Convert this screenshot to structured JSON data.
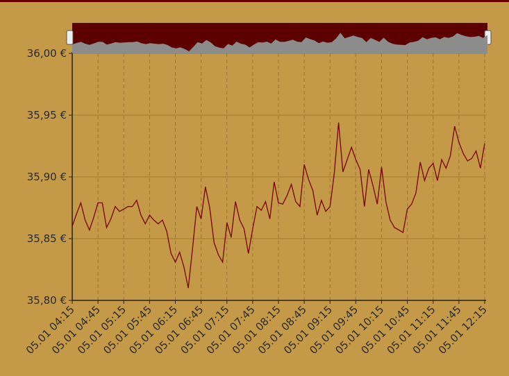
{
  "chart_data": {
    "type": "line",
    "categories": [
      "05.01 04:15",
      null,
      null,
      null,
      null,
      null,
      "05.01 04:45",
      null,
      null,
      null,
      null,
      null,
      "05.01 05:15",
      null,
      null,
      null,
      null,
      null,
      "05.01 05:45",
      null,
      null,
      null,
      null,
      null,
      "05.01 06:15",
      null,
      null,
      null,
      null,
      null,
      "05.01 06:45",
      null,
      null,
      null,
      null,
      null,
      "05.01 07:15",
      null,
      null,
      null,
      null,
      null,
      "05.01 07:45",
      null,
      null,
      null,
      null,
      null,
      "05.01 08:15",
      null,
      null,
      null,
      null,
      null,
      "05.01 08:45",
      null,
      null,
      null,
      null,
      null,
      "05.01 09:15",
      null,
      null,
      null,
      null,
      null,
      "05.01 09:45",
      null,
      null,
      null,
      null,
      null,
      "05.01 10:15",
      null,
      null,
      null,
      null,
      null,
      "05.01 10:45",
      null,
      null,
      null,
      null,
      null,
      "05.01 11:15",
      null,
      null,
      null,
      null,
      null,
      "05.01 11:45",
      null,
      null,
      null,
      null,
      null,
      "05.01 12:15"
    ],
    "values": [
      35.86,
      35.87,
      35.879,
      35.865,
      35.857,
      35.867,
      35.879,
      35.879,
      35.859,
      35.866,
      35.876,
      35.872,
      35.874,
      35.876,
      35.876,
      35.881,
      35.869,
      35.862,
      35.869,
      35.865,
      35.862,
      35.865,
      35.856,
      35.838,
      35.831,
      35.839,
      35.827,
      35.81,
      35.842,
      35.876,
      35.866,
      35.892,
      35.875,
      35.847,
      35.837,
      35.831,
      35.863,
      35.851,
      35.88,
      35.865,
      35.858,
      35.838,
      35.858,
      35.876,
      35.873,
      35.88,
      35.866,
      35.896,
      35.879,
      35.878,
      35.885,
      35.894,
      35.88,
      35.876,
      35.91,
      35.898,
      35.889,
      35.869,
      35.881,
      35.872,
      35.876,
      35.903,
      35.944,
      35.904,
      35.914,
      35.924,
      35.914,
      35.906,
      35.876,
      35.906,
      35.893,
      35.878,
      35.908,
      35.88,
      35.865,
      35.859,
      35.857,
      35.855,
      35.874,
      35.878,
      35.887,
      35.912,
      35.897,
      35.907,
      35.911,
      35.897,
      35.914,
      35.907,
      35.917,
      35.941,
      35.928,
      35.919,
      35.913,
      35.915,
      35.921,
      35.907,
      35.927
    ],
    "color": "#7a0000",
    "ylim": [
      35.8,
      36.0
    ],
    "yticks": [
      {
        "value": 35.8,
        "label": "35,80 €"
      },
      {
        "value": 35.85,
        "label": "35,85 €"
      },
      {
        "value": 35.9,
        "label": "35,90 €"
      },
      {
        "value": 35.95,
        "label": "35,95 €"
      },
      {
        "value": 36.0,
        "label": "36,00 €"
      }
    ],
    "grid": true
  }
}
